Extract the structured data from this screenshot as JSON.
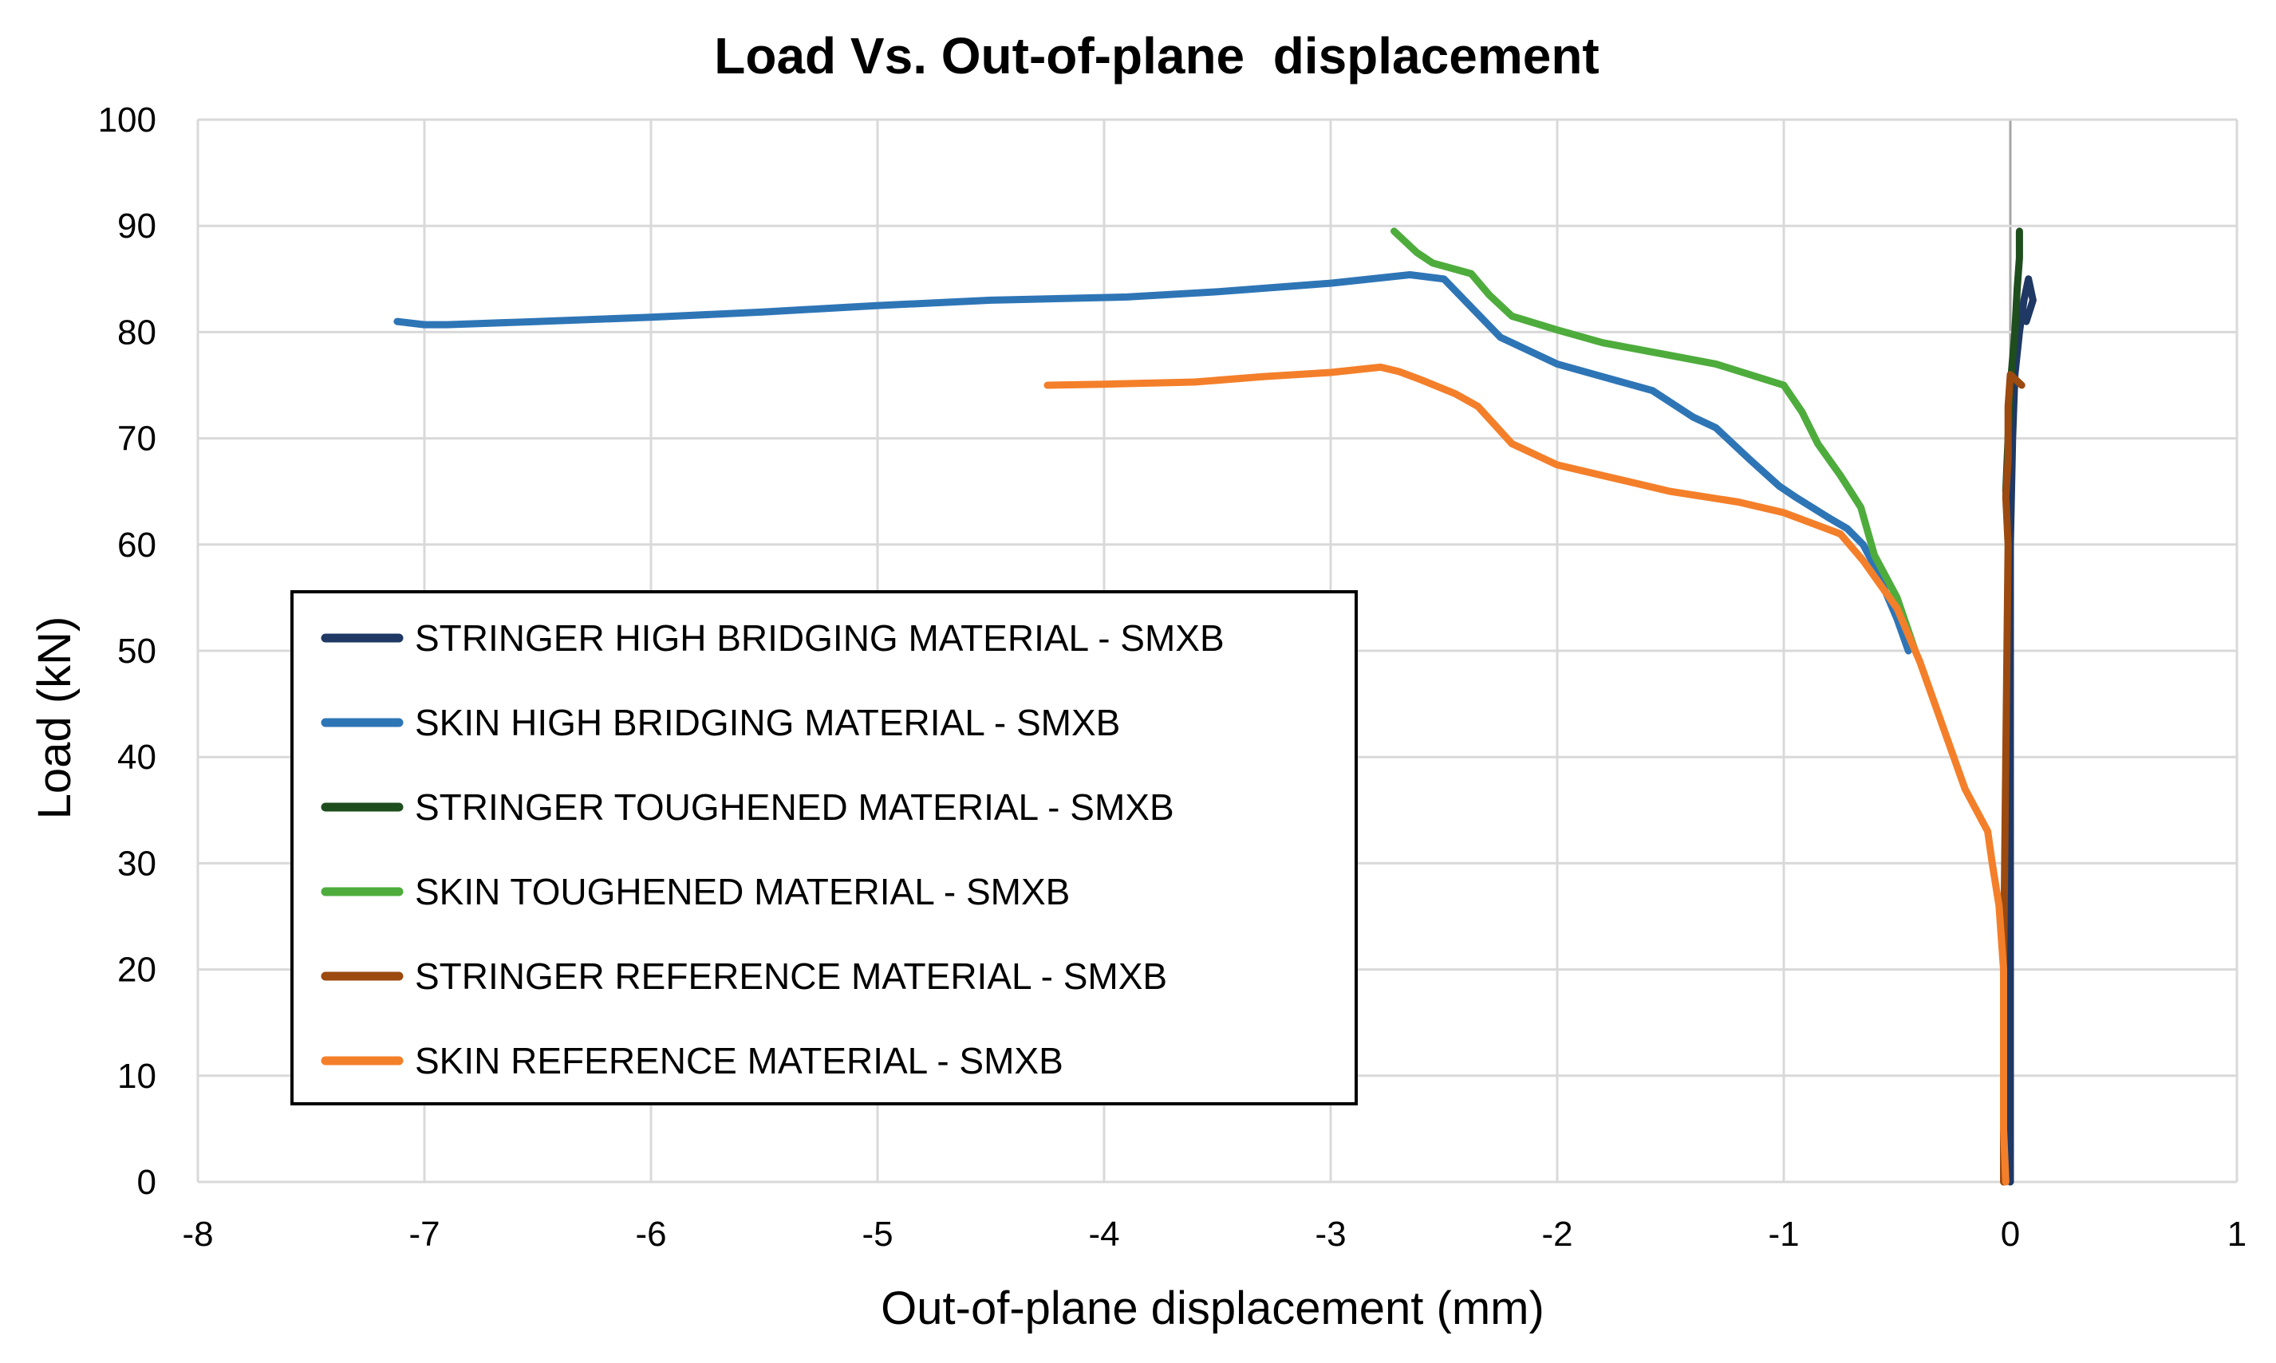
{
  "chart_data": {
    "type": "line",
    "title": "Load Vs. Out-of-plane  displacement",
    "xlabel": "Out-of-plane displacement (mm)",
    "ylabel": "Load (kN)",
    "xlim": [
      -8,
      1
    ],
    "ylim": [
      0,
      100
    ],
    "x_ticks": [
      -8,
      -7,
      -6,
      -5,
      -4,
      -3,
      -2,
      -1,
      0,
      1
    ],
    "y_ticks": [
      0,
      10,
      20,
      30,
      40,
      50,
      60,
      70,
      80,
      90,
      100
    ],
    "grid": true,
    "legend_position": "left-center",
    "series": [
      {
        "name": "STRINGER HIGH BRIDGING  MATERIAL - SMXB",
        "color": "#1f3864",
        "points": [
          [
            0.0,
            0
          ],
          [
            0.0,
            20
          ],
          [
            0.0,
            40
          ],
          [
            0.0,
            60
          ],
          [
            0.01,
            70
          ],
          [
            0.02,
            76
          ],
          [
            0.04,
            80
          ],
          [
            0.06,
            83
          ],
          [
            0.08,
            85
          ],
          [
            0.1,
            83
          ],
          [
            0.07,
            81
          ],
          [
            0.05,
            82
          ]
        ]
      },
      {
        "name": "SKIN HIGH BRIDGING MATERIAL - SMXB",
        "color": "#2e75b6",
        "points": [
          [
            -0.45,
            50
          ],
          [
            -0.5,
            53
          ],
          [
            -0.6,
            58
          ],
          [
            -0.65,
            60
          ],
          [
            -0.72,
            61.5
          ],
          [
            -0.8,
            62.5
          ],
          [
            -0.95,
            64.5
          ],
          [
            -1.02,
            65.5
          ],
          [
            -1.15,
            68
          ],
          [
            -1.3,
            71
          ],
          [
            -1.4,
            72
          ],
          [
            -1.58,
            74.5
          ],
          [
            -1.8,
            75.8
          ],
          [
            -2.0,
            77
          ],
          [
            -2.2,
            79
          ],
          [
            -2.25,
            79.5
          ],
          [
            -2.5,
            85
          ],
          [
            -2.65,
            85.4
          ],
          [
            -3.0,
            84.6
          ],
          [
            -3.5,
            83.8
          ],
          [
            -3.9,
            83.3
          ],
          [
            -4.5,
            83
          ],
          [
            -5.0,
            82.5
          ],
          [
            -5.5,
            81.9
          ],
          [
            -6.0,
            81.4
          ],
          [
            -6.5,
            81
          ],
          [
            -6.9,
            80.7
          ],
          [
            -7.0,
            80.7
          ],
          [
            -7.12,
            81
          ]
        ]
      },
      {
        "name": "STRINGER TOUGHENED MATERIAL - SMXB",
        "color": "#1e4d1e",
        "points": [
          [
            -0.02,
            65
          ],
          [
            -0.01,
            70
          ],
          [
            0.0,
            75
          ],
          [
            0.02,
            80
          ],
          [
            0.03,
            84
          ],
          [
            0.04,
            87
          ],
          [
            0.04,
            89.5
          ]
        ]
      },
      {
        "name": "SKIN TOUGHENED MATERIAL - SMXB",
        "color": "#4eac3c",
        "points": [
          [
            -0.42,
            50
          ],
          [
            -0.5,
            55
          ],
          [
            -0.6,
            59
          ],
          [
            -0.66,
            63.5
          ],
          [
            -0.75,
            66.5
          ],
          [
            -0.85,
            69.5
          ],
          [
            -0.92,
            72.5
          ],
          [
            -1.0,
            75
          ],
          [
            -1.3,
            77
          ],
          [
            -1.5,
            77.8
          ],
          [
            -1.8,
            79
          ],
          [
            -2.0,
            80.2
          ],
          [
            -2.2,
            81.5
          ],
          [
            -2.3,
            83.5
          ],
          [
            -2.38,
            85.5
          ],
          [
            -2.55,
            86.5
          ],
          [
            -2.62,
            87.5
          ],
          [
            -2.72,
            89.5
          ]
        ]
      },
      {
        "name": "STRINGER REFERENCE MATERIAL - SMXB",
        "color": "#9c4a0f",
        "points": [
          [
            -0.03,
            0
          ],
          [
            -0.03,
            20
          ],
          [
            -0.02,
            40
          ],
          [
            -0.01,
            60
          ],
          [
            -0.02,
            64.5
          ],
          [
            -0.01,
            68
          ],
          [
            -0.01,
            73
          ],
          [
            0.0,
            76
          ],
          [
            0.05,
            75
          ]
        ]
      },
      {
        "name": "SKIN REFERENCE MATERIAL - SMXB",
        "color": "#f47f2a",
        "points": [
          [
            -0.02,
            0
          ],
          [
            -0.03,
            5
          ],
          [
            -0.03,
            10
          ],
          [
            -0.03,
            20
          ],
          [
            -0.05,
            26
          ],
          [
            -0.08,
            30
          ],
          [
            -0.1,
            33
          ],
          [
            -0.2,
            37
          ],
          [
            -0.3,
            43
          ],
          [
            -0.4,
            49
          ],
          [
            -0.5,
            54
          ],
          [
            -0.6,
            57
          ],
          [
            -0.65,
            58.5
          ],
          [
            -0.75,
            61
          ],
          [
            -1.0,
            63
          ],
          [
            -1.2,
            64
          ],
          [
            -1.5,
            65
          ],
          [
            -1.8,
            66.5
          ],
          [
            -2.0,
            67.5
          ],
          [
            -2.2,
            69.5
          ],
          [
            -2.35,
            73
          ],
          [
            -2.45,
            74.2
          ],
          [
            -2.6,
            75.5
          ],
          [
            -2.7,
            76.3
          ],
          [
            -2.78,
            76.7
          ],
          [
            -3.0,
            76.2
          ],
          [
            -3.3,
            75.8
          ],
          [
            -3.6,
            75.3
          ],
          [
            -4.0,
            75.1
          ],
          [
            -4.25,
            75
          ]
        ]
      }
    ]
  }
}
